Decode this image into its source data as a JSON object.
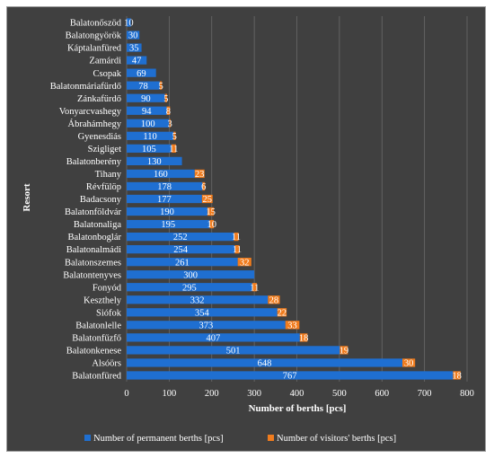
{
  "chart_data": {
    "type": "bar",
    "orientation": "horizontal",
    "stacked": true,
    "xlabel": "Number of berths [pcs]",
    "ylabel": "Resort",
    "xlim": [
      0,
      800
    ],
    "xticks": [
      "0",
      "100",
      "200",
      "300",
      "400",
      "500",
      "600",
      "700",
      "800"
    ],
    "grid": true,
    "legend_position": "bottom",
    "categories": [
      "Balatonőszöd",
      "Balatongyörök",
      "Káptalanfüred",
      "Zamárdi",
      "Csopak",
      "Balatonmáriafürdő",
      "Zánkafürdő",
      "Vonyarcvashegy",
      "Ábrahámhegy",
      "Gyenesdiás",
      "Szigliget",
      "Balatonberény",
      "Tihany",
      "Révfülöp",
      "Badacsony",
      "Balatonföldvár",
      "Balatonaliga",
      "Balatonboglár",
      "Balatonalmádi",
      "Balatonszemes",
      "Balatontenyves",
      "Fonyód",
      "Keszthely",
      "Siófok",
      "Balatonlelle",
      "Balatonfűzfő",
      "Balatonkenese",
      "Alsóörs",
      "Balatonfüred"
    ],
    "series": [
      {
        "name": "Number of permanent berths [pcs]",
        "color": "#1f6fd1",
        "values": [
          10,
          30,
          35,
          47,
          69,
          78,
          90,
          94,
          100,
          110,
          105,
          130,
          160,
          178,
          177,
          190,
          195,
          252,
          254,
          261,
          300,
          295,
          332,
          354,
          373,
          407,
          501,
          648,
          767
        ],
        "labels": [
          "10",
          "30",
          "35",
          "47",
          "69",
          "78",
          "90",
          "94",
          "100",
          "110",
          "105",
          "130",
          "160",
          "178",
          "177",
          "190",
          "195",
          "252",
          "254",
          "261",
          "300",
          "295",
          "332",
          "354",
          "373",
          "407",
          "501",
          "648",
          "767"
        ]
      },
      {
        "name": "Number of visitors' berths [pcs]",
        "color": "#f07c1e",
        "values": [
          0,
          0,
          0,
          0,
          0,
          5,
          5,
          8,
          3,
          5,
          11,
          0,
          23,
          6,
          25,
          15,
          10,
          11,
          11,
          32,
          0,
          11,
          28,
          22,
          33,
          18,
          19,
          30,
          18
        ],
        "labels": [
          "",
          "",
          "",
          "",
          "",
          "5",
          "5",
          "8",
          "3",
          "5",
          "11",
          "",
          "23",
          "6",
          "25",
          "15",
          "10",
          "11",
          "11",
          "32",
          "",
          "11",
          "28",
          "22",
          "33",
          "18",
          "19",
          "30",
          "18"
        ]
      }
    ]
  }
}
